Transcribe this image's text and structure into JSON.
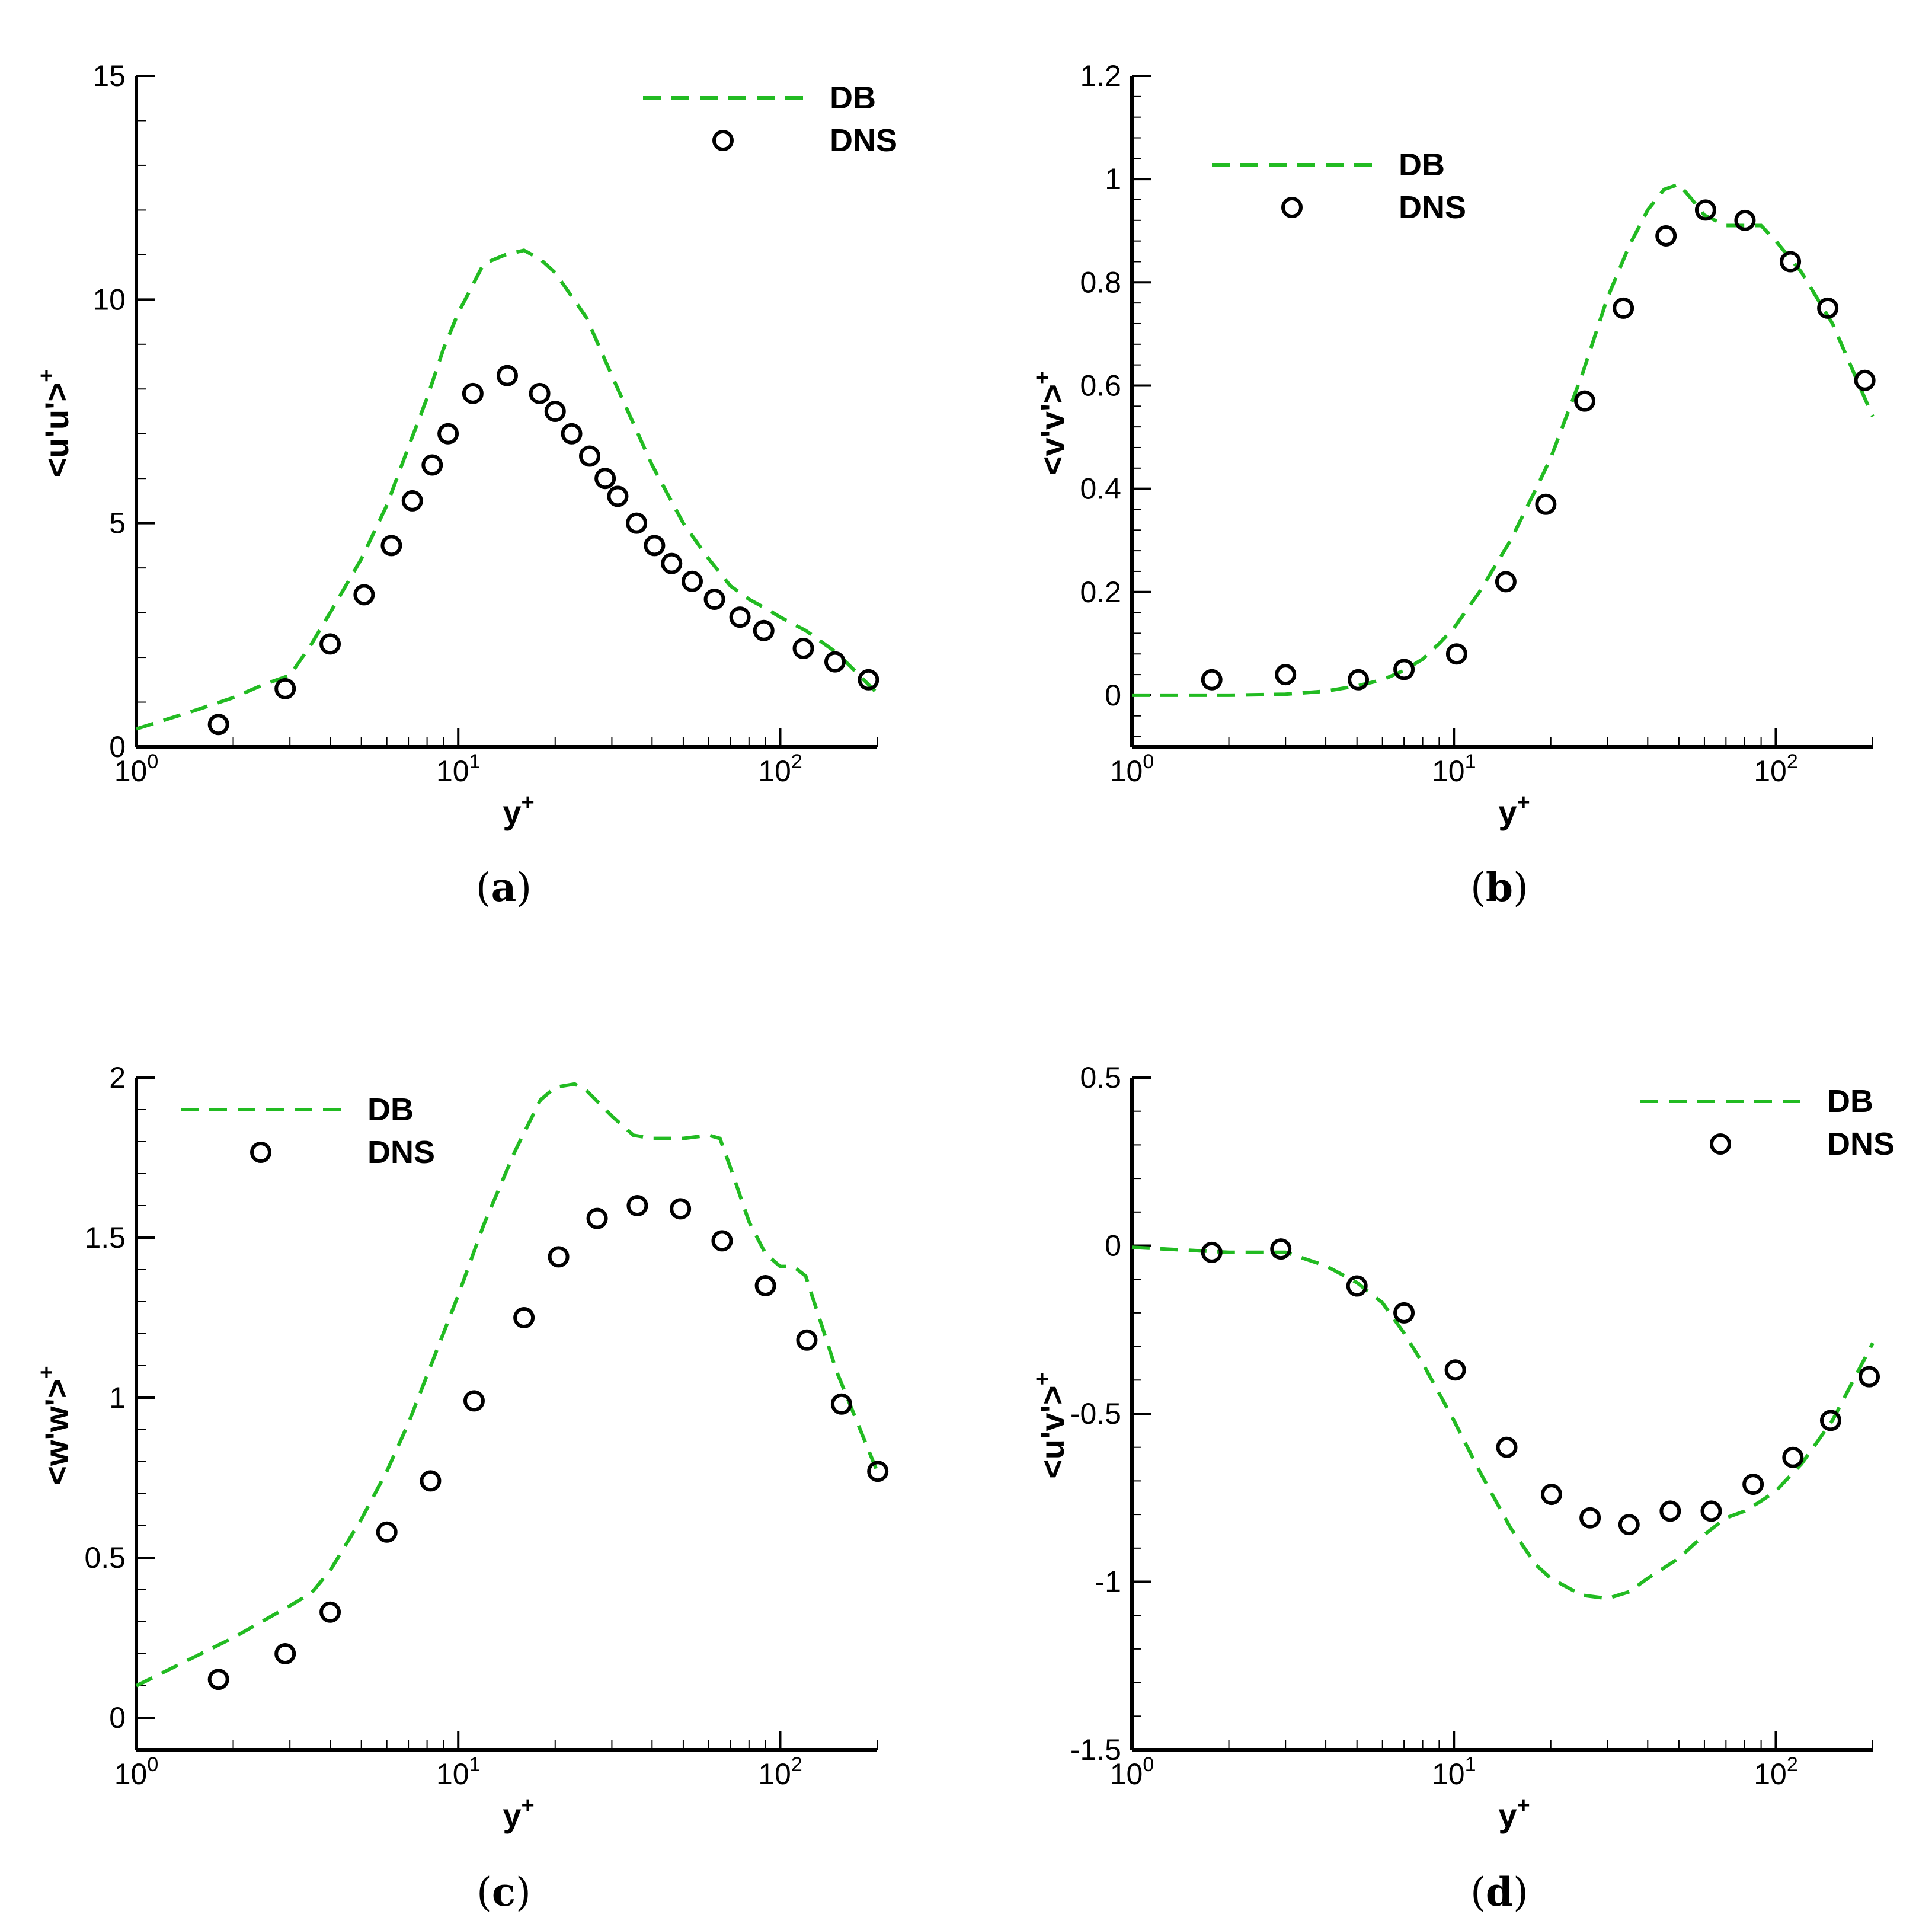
{
  "colors": {
    "db_line": "#22bb22",
    "dns_marker": "#000000",
    "axis": "#000000"
  },
  "chart_data": [
    {
      "type": "line",
      "caption": "a",
      "xlabel": "y",
      "xlabel_sup": "+",
      "ylabel": "<u'u'>",
      "ylabel_sup": "+",
      "x_scale": "log",
      "xlim": [
        1,
        200
      ],
      "ylim": [
        0,
        15
      ],
      "yticks": [
        0,
        5,
        10,
        15
      ],
      "ytick_labels": [
        "0",
        "5",
        "10",
        "15"
      ],
      "xticks": [
        1,
        10,
        100
      ],
      "xtick_base": "10",
      "xtick_exponents": [
        "0",
        "1",
        "2"
      ],
      "legend": {
        "position": "top-right",
        "entries": [
          "DB",
          "DNS"
        ]
      },
      "series": [
        {
          "name": "DB",
          "style": "dashed-line",
          "x": [
            1,
            1.5,
            2,
            2.5,
            3,
            3.5,
            4,
            5,
            6,
            7,
            8,
            9,
            10,
            12,
            14,
            16,
            18,
            20,
            25,
            30,
            40,
            50,
            60,
            70,
            80,
            90,
            100,
            120,
            150,
            200
          ],
          "y": [
            0.4,
            0.8,
            1.1,
            1.4,
            1.6,
            2.3,
            3.0,
            4.2,
            5.4,
            6.7,
            7.8,
            8.9,
            9.7,
            10.8,
            11.0,
            11.1,
            10.9,
            10.6,
            9.6,
            8.3,
            6.3,
            5.0,
            4.2,
            3.6,
            3.3,
            3.1,
            2.9,
            2.6,
            2.1,
            1.2
          ]
        },
        {
          "name": "DNS",
          "style": "circle-markers",
          "x": [
            1.8,
            2.9,
            4.0,
            5.1,
            6.2,
            7.2,
            8.3,
            9.3,
            11.1,
            14.2,
            17.9,
            20.0,
            22.5,
            25.6,
            28.6,
            31.3,
            35.8,
            40.7,
            46.0,
            53.3,
            62.5,
            75.0,
            88.9,
            118.0,
            148.0,
            188.0
          ],
          "y": [
            0.5,
            1.3,
            2.3,
            3.4,
            4.5,
            5.5,
            6.3,
            7.0,
            7.9,
            8.3,
            7.9,
            7.5,
            7.0,
            6.5,
            6.0,
            5.6,
            5.0,
            4.5,
            4.1,
            3.7,
            3.3,
            2.9,
            2.6,
            2.2,
            1.9,
            1.5
          ]
        }
      ]
    },
    {
      "type": "line",
      "caption": "b",
      "xlabel": "y",
      "xlabel_sup": "+",
      "ylabel": "<v'v'>",
      "ylabel_sup": "+",
      "x_scale": "log",
      "xlim": [
        1,
        200
      ],
      "ylim": [
        -0.1,
        1.2
      ],
      "yticks": [
        0,
        0.2,
        0.4,
        0.6,
        0.8,
        1,
        1.2
      ],
      "ytick_labels": [
        "0",
        "0.2",
        "0.4",
        "0.6",
        "0.8",
        "1",
        "1.2"
      ],
      "xticks": [
        1,
        10,
        100
      ],
      "xtick_base": "10",
      "xtick_exponents": [
        "0",
        "1",
        "2"
      ],
      "legend": {
        "position": "top-left",
        "entries": [
          "DB",
          "DNS"
        ]
      },
      "series": [
        {
          "name": "DB",
          "style": "dashed-line",
          "x": [
            1,
            2,
            3,
            4,
            5,
            6,
            7,
            8,
            9,
            10,
            12,
            15,
            18,
            20,
            25,
            30,
            35,
            40,
            45,
            50,
            55,
            60,
            70,
            80,
            90,
            100,
            120,
            150,
            200
          ],
          "y": [
            0,
            0,
            0.002,
            0.008,
            0.018,
            0.03,
            0.048,
            0.07,
            0.1,
            0.13,
            0.2,
            0.3,
            0.4,
            0.46,
            0.62,
            0.77,
            0.87,
            0.94,
            0.98,
            0.99,
            0.96,
            0.93,
            0.91,
            0.91,
            0.91,
            0.88,
            0.82,
            0.72,
            0.54
          ]
        },
        {
          "name": "DNS",
          "style": "circle-markers",
          "x": [
            1.77,
            3.0,
            5.05,
            7.0,
            10.2,
            14.5,
            19.3,
            25.5,
            33.6,
            45.6,
            60.5,
            80.2,
            111.0,
            145.0,
            189.0
          ],
          "y": [
            0.03,
            0.04,
            0.03,
            0.05,
            0.08,
            0.22,
            0.37,
            0.57,
            0.75,
            0.89,
            0.94,
            0.92,
            0.84,
            0.75,
            0.61
          ]
        }
      ]
    },
    {
      "type": "line",
      "caption": "c",
      "xlabel": "y",
      "xlabel_sup": "+",
      "ylabel": "<w'w'>",
      "ylabel_sup": "+",
      "x_scale": "log",
      "xlim": [
        1,
        200
      ],
      "ylim": [
        -0.1,
        2
      ],
      "yticks": [
        0,
        0.5,
        1,
        1.5,
        2
      ],
      "ytick_labels": [
        "0",
        "0.5",
        "1",
        "1.5",
        "2"
      ],
      "xticks": [
        1,
        10,
        100
      ],
      "xtick_base": "10",
      "xtick_exponents": [
        "0",
        "1",
        "2"
      ],
      "legend": {
        "position": "top-left",
        "entries": [
          "DB",
          "DNS"
        ]
      },
      "series": [
        {
          "name": "DB",
          "style": "dashed-line",
          "x": [
            1,
            2,
            3,
            3.5,
            4,
            5,
            6,
            7,
            8,
            10,
            12,
            15,
            18,
            20,
            23,
            25,
            30,
            35,
            40,
            45,
            50,
            60,
            65,
            70,
            80,
            90,
            100,
            110,
            120,
            150,
            200
          ],
          "y": [
            0.1,
            0.25,
            0.35,
            0.39,
            0.46,
            0.62,
            0.77,
            0.92,
            1.07,
            1.32,
            1.54,
            1.77,
            1.93,
            1.97,
            1.98,
            1.96,
            1.88,
            1.82,
            1.81,
            1.81,
            1.81,
            1.82,
            1.81,
            1.72,
            1.55,
            1.45,
            1.41,
            1.41,
            1.38,
            1.08,
            0.77
          ]
        },
        {
          "name": "DNS",
          "style": "circle-markers",
          "x": [
            1.8,
            2.9,
            4.0,
            6.0,
            8.2,
            11.2,
            16.0,
            20.5,
            27.0,
            36.0,
            49.0,
            66.0,
            90.0,
            121.0,
            155.0,
            201.0
          ],
          "y": [
            0.12,
            0.2,
            0.33,
            0.58,
            0.74,
            0.99,
            1.25,
            1.44,
            1.56,
            1.6,
            1.59,
            1.49,
            1.35,
            1.18,
            0.98,
            0.77
          ]
        }
      ]
    },
    {
      "type": "line",
      "caption": "d",
      "xlabel": "y",
      "xlabel_sup": "+",
      "ylabel": "<u'v'>",
      "ylabel_sup": "+",
      "x_scale": "log",
      "xlim": [
        1,
        200
      ],
      "ylim": [
        -1.5,
        0.5
      ],
      "yticks": [
        -1.5,
        -1,
        -0.5,
        0,
        0.5
      ],
      "ytick_labels": [
        "-1.5",
        "-1",
        "-0.5",
        "0",
        "0.5"
      ],
      "xticks": [
        1,
        10,
        100
      ],
      "xtick_base": "10",
      "xtick_exponents": [
        "0",
        "1",
        "2"
      ],
      "legend": {
        "position": "top-right",
        "entries": [
          "DB",
          "DNS"
        ]
      },
      "series": [
        {
          "name": "DB",
          "style": "dashed-line",
          "x": [
            1,
            2,
            3,
            4,
            5,
            6,
            7,
            8,
            10,
            12,
            15,
            18,
            20,
            25,
            30,
            35,
            40,
            50,
            60,
            70,
            80,
            90,
            100,
            120,
            150,
            200
          ],
          "y": [
            -0.005,
            -0.02,
            -0.02,
            -0.06,
            -0.11,
            -0.17,
            -0.26,
            -0.35,
            -0.52,
            -0.67,
            -0.84,
            -0.95,
            -0.99,
            -1.04,
            -1.05,
            -1.03,
            -0.99,
            -0.93,
            -0.86,
            -0.81,
            -0.79,
            -0.76,
            -0.73,
            -0.65,
            -0.52,
            -0.29
          ]
        },
        {
          "name": "DNS",
          "style": "circle-markers",
          "x": [
            1.77,
            2.9,
            5.0,
            7.0,
            10.1,
            14.6,
            20.1,
            26.5,
            35.0,
            47.0,
            63.0,
            85.0,
            113.0,
            148.0,
            195.0
          ],
          "y": [
            -0.02,
            -0.01,
            -0.12,
            -0.2,
            -0.37,
            -0.6,
            -0.74,
            -0.81,
            -0.83,
            -0.79,
            -0.79,
            -0.71,
            -0.63,
            -0.52,
            -0.39
          ]
        }
      ]
    }
  ]
}
